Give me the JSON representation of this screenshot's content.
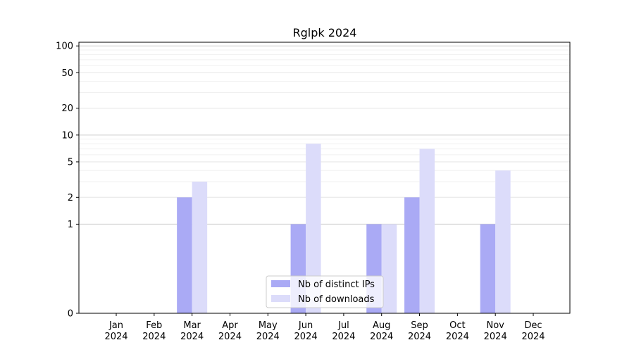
{
  "chart_data": {
    "type": "bar",
    "title": "Rglpk 2024",
    "categories": [
      "Jan\n2024",
      "Feb\n2024",
      "Mar\n2024",
      "Apr\n2024",
      "May\n2024",
      "Jun\n2024",
      "Jul\n2024",
      "Aug\n2024",
      "Sep\n2024",
      "Oct\n2024",
      "Nov\n2024",
      "Dec\n2024"
    ],
    "series": [
      {
        "name": "Nb of distinct IPs",
        "color": "#aaaaf5",
        "values": [
          0,
          0,
          2,
          0,
          0,
          1,
          0,
          1,
          2,
          0,
          1,
          0
        ]
      },
      {
        "name": "Nb of downloads",
        "color": "#dcdcfa",
        "values": [
          0,
          0,
          3,
          0,
          0,
          8,
          0,
          1,
          7,
          0,
          4,
          0
        ]
      }
    ],
    "yscale": "symlog",
    "ylim": [
      0,
      110
    ],
    "yticks": [
      0,
      1,
      2,
      5,
      10,
      20,
      50,
      100
    ],
    "xlabel": "",
    "ylabel": "",
    "grid": true,
    "legend_position": "lower-center"
  }
}
